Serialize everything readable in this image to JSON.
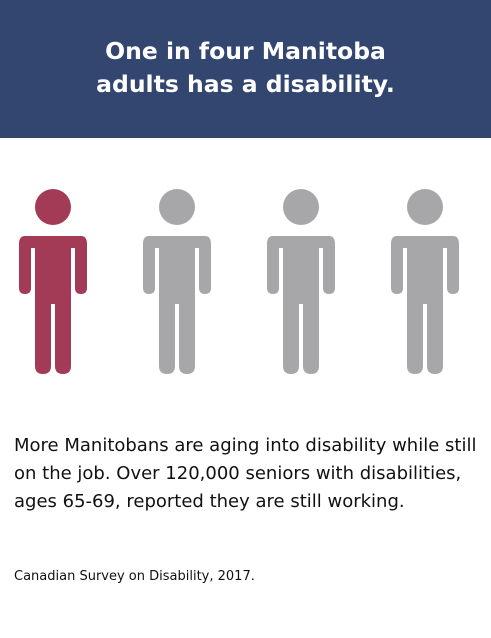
{
  "banner": {
    "title_line1": "One in four Manitoba",
    "title_line2": "adults has a disability.",
    "color": "#324670"
  },
  "figures": {
    "icon": "person-icon",
    "highlighted_count": 1,
    "total_count": 4,
    "highlight_color": "#a33a56",
    "default_color": "#a7a7a9"
  },
  "body": {
    "text": "More Manitobans are aging into disability while still on the job. Over 120,000 seniors with disabilities, ages 65-69, reported they are still working."
  },
  "source": {
    "text": "Canadian Survey on Disability, 2017."
  }
}
